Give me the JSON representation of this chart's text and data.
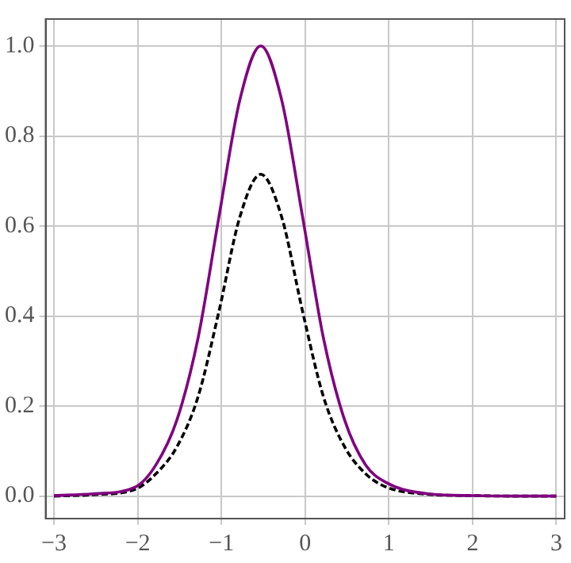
{
  "chart_data": {
    "type": "line",
    "x": [
      -3,
      -2.53,
      -2.03,
      -1.78,
      -1.53,
      -1.28,
      -1.03,
      -0.78,
      -0.53,
      -0.28,
      -0.03,
      0.22,
      0.47,
      0.72,
      0.97,
      1.47,
      2,
      2.5,
      3
    ],
    "series": [
      {
        "color": "#800080",
        "line_style": "solid",
        "values": [
          0.001,
          0.005,
          0.02,
          0.07,
          0.17,
          0.35,
          0.62,
          0.88,
          1.0,
          0.88,
          0.62,
          0.35,
          0.17,
          0.07,
          0.03,
          0.005,
          0.001,
          0,
          0
        ]
      },
      {
        "color": "#000000",
        "line_style": "dashed",
        "values": [
          0,
          0.003,
          0.015,
          0.05,
          0.11,
          0.22,
          0.41,
          0.62,
          0.715,
          0.62,
          0.41,
          0.22,
          0.11,
          0.05,
          0.02,
          0.004,
          0.001,
          0,
          0
        ]
      }
    ],
    "xlim": [
      -3.1,
      3.1
    ],
    "ylim": [
      -0.05,
      1.06
    ],
    "xticks": [
      {
        "value": -3,
        "label": "−3"
      },
      {
        "value": -2,
        "label": "−2"
      },
      {
        "value": -1,
        "label": "−1"
      },
      0,
      1,
      2,
      3
    ],
    "yticks": [
      {
        "value": 0,
        "label": "0.0"
      },
      {
        "value": 0.2,
        "label": "0.2"
      },
      {
        "value": 0.4,
        "label": "0.4"
      },
      {
        "value": 0.6,
        "label": "0.6"
      },
      {
        "value": 0.8,
        "label": "0.8"
      },
      {
        "value": 1,
        "label": "1.0"
      }
    ],
    "grid": true,
    "marker": "none",
    "legend": false
  }
}
